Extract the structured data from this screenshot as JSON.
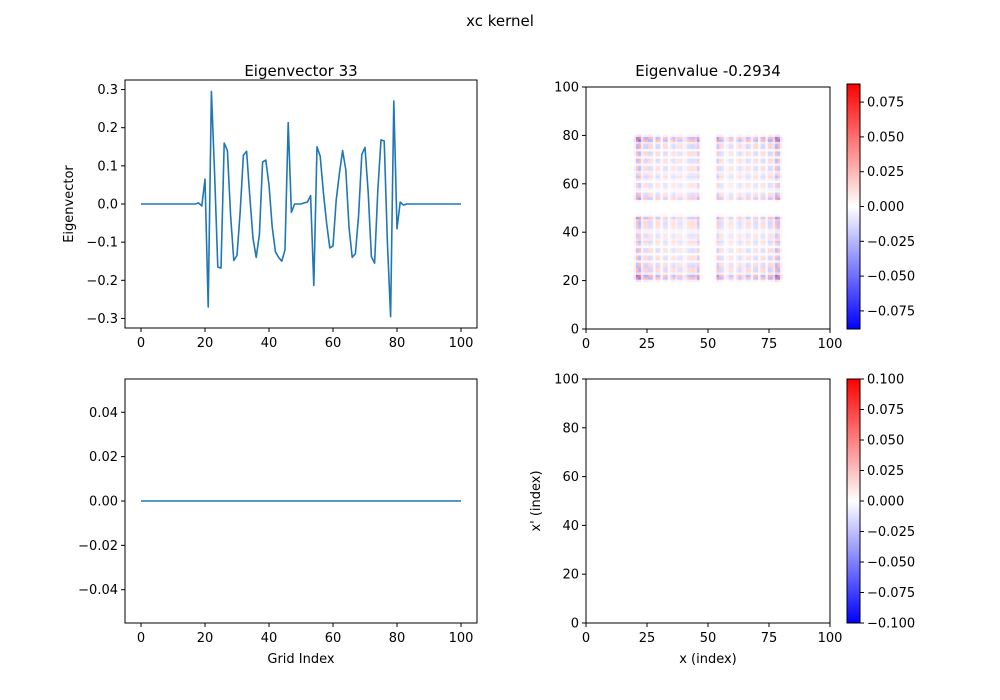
{
  "suptitle": "xc kernel",
  "colors": {
    "line": "#1f77b4",
    "cmap_low": "#0000ff",
    "cmap_mid": "#ffffff",
    "cmap_high": "#ff0000"
  },
  "chart_data": [
    {
      "panel": "top-left",
      "type": "line",
      "title": "Eigenvector 33",
      "xlabel": "",
      "ylabel": "Eigenvector",
      "xlim": [
        -5,
        105
      ],
      "ylim": [
        -0.325,
        0.325
      ],
      "xticks": [
        "0",
        "20",
        "40",
        "60",
        "80",
        "100"
      ],
      "yticks": [
        "−0.3",
        "−0.2",
        "−0.1",
        "0.0",
        "0.1",
        "0.2",
        "0.3"
      ],
      "series": [
        {
          "x": [
            0,
            1,
            2,
            3,
            4,
            5,
            6,
            7,
            8,
            9,
            10,
            11,
            12,
            13,
            14,
            15,
            16,
            17,
            18,
            19,
            20,
            21,
            22,
            23,
            24,
            25,
            26,
            27,
            28,
            29,
            30,
            31,
            32,
            33,
            34,
            35,
            36,
            37,
            38,
            39,
            40,
            41,
            42,
            43,
            44,
            45,
            46,
            47,
            48,
            49,
            50,
            51,
            52,
            53,
            54,
            55,
            56,
            57,
            58,
            59,
            60,
            61,
            62,
            63,
            64,
            65,
            66,
            67,
            68,
            69,
            70,
            71,
            72,
            73,
            74,
            75,
            76,
            77,
            78,
            79,
            80,
            81,
            82,
            83,
            84,
            85,
            86,
            87,
            88,
            89,
            90,
            91,
            92,
            93,
            94,
            95,
            96,
            97,
            98,
            99,
            100
          ],
          "y": [
            0,
            0,
            0,
            0,
            0,
            0,
            0,
            0,
            0,
            0,
            0,
            0,
            0,
            0,
            0,
            0,
            0,
            0,
            0.003,
            -0.005,
            0.065,
            -0.27,
            0.295,
            0.08,
            -0.165,
            -0.168,
            0.16,
            0.14,
            -0.03,
            -0.148,
            -0.135,
            -0.02,
            0.128,
            0.138,
            0.02,
            -0.09,
            -0.14,
            -0.08,
            0.11,
            0.115,
            0.05,
            -0.06,
            -0.125,
            -0.14,
            -0.15,
            -0.12,
            0.213,
            -0.022,
            0,
            0,
            0,
            0.003,
            0.005,
            0.022,
            -0.213,
            0.15,
            0.125,
            0.03,
            -0.05,
            -0.115,
            -0.11,
            0.01,
            0.08,
            0.14,
            0.09,
            -0.06,
            -0.14,
            -0.13,
            -0.03,
            0.13,
            0.148,
            0.03,
            -0.138,
            -0.155,
            0.035,
            0.168,
            0.165,
            -0.1,
            -0.295,
            0.27,
            -0.065,
            0.005,
            -0.003,
            0,
            0,
            0,
            0,
            0,
            0,
            0,
            0,
            0,
            0,
            0,
            0,
            0,
            0,
            0,
            0,
            0,
            0
          ]
        }
      ]
    },
    {
      "panel": "top-right",
      "type": "heatmap",
      "title": "Eigenvalue -0.2934",
      "xlabel": "",
      "ylabel": "",
      "xlim": [
        0,
        100
      ],
      "ylim": [
        0,
        100
      ],
      "xticks": [
        "0",
        "25",
        "50",
        "75",
        "100"
      ],
      "yticks": [
        "0",
        "20",
        "40",
        "60",
        "80",
        "100"
      ],
      "colorbar": {
        "vmin": -0.088,
        "vmax": 0.088,
        "ticks": [
          "−0.075",
          "−0.050",
          "−0.025",
          "0.000",
          "0.025",
          "0.050",
          "0.075"
        ]
      }
    },
    {
      "panel": "bottom-left",
      "type": "line",
      "title": "",
      "xlabel": "Grid Index",
      "ylabel": "",
      "xlim": [
        -5,
        105
      ],
      "ylim": [
        -0.055,
        0.055
      ],
      "xticks": [
        "0",
        "20",
        "40",
        "60",
        "80",
        "100"
      ],
      "yticks": [
        "−0.04",
        "−0.02",
        "0.00",
        "0.02",
        "0.04"
      ],
      "series": [
        {
          "x": [
            0,
            100
          ],
          "y": [
            0,
            0
          ]
        }
      ]
    },
    {
      "panel": "bottom-right",
      "type": "heatmap",
      "title": "",
      "xlabel": "x (index)",
      "ylabel": "x' (index)",
      "xlim": [
        0,
        100
      ],
      "ylim": [
        0,
        100
      ],
      "xticks": [
        "0",
        "25",
        "50",
        "75",
        "100"
      ],
      "yticks": [
        "0",
        "20",
        "40",
        "60",
        "80",
        "100"
      ],
      "colorbar": {
        "vmin": -0.1,
        "vmax": 0.1,
        "ticks": [
          "−0.100",
          "−0.075",
          "−0.050",
          "−0.025",
          "0.000",
          "0.025",
          "0.050",
          "0.075",
          "0.100"
        ]
      }
    }
  ]
}
